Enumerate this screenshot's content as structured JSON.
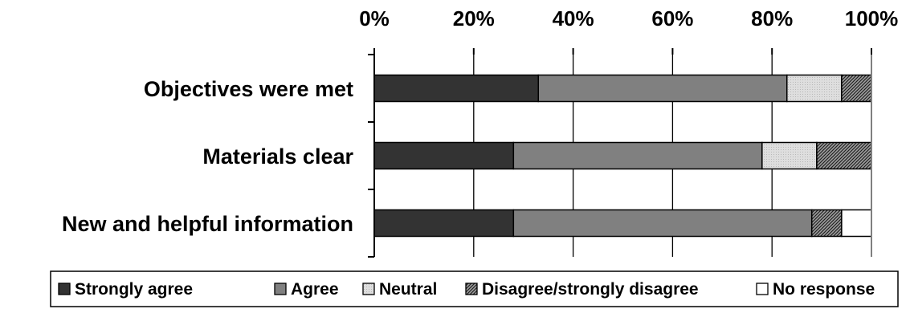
{
  "chart_data": {
    "type": "bar",
    "orientation": "horizontal",
    "stacked": true,
    "percent": true,
    "categories": [
      "Objectives were met",
      "Materials clear",
      "New and helpful information"
    ],
    "series": [
      {
        "name": "Strongly agree",
        "values": [
          33,
          28,
          28
        ]
      },
      {
        "name": "Agree",
        "values": [
          50,
          50,
          60
        ]
      },
      {
        "name": "Neutral",
        "values": [
          11,
          11,
          0
        ]
      },
      {
        "name": "Disagree/strongly disagree",
        "values": [
          6,
          11,
          6
        ]
      },
      {
        "name": "No response",
        "values": [
          0,
          0,
          6
        ]
      }
    ],
    "x_ticks": [
      "0%",
      "20%",
      "40%",
      "60%",
      "80%",
      "100%"
    ],
    "xlim": [
      0,
      100
    ],
    "grid": true,
    "legend": "bottom",
    "colors": {
      "Strongly agree": "#333333",
      "Agree": "#808080",
      "Neutral": "#dcdcdc",
      "Disagree/strongly disagree": "hatch",
      "No response": "#ffffff"
    }
  }
}
